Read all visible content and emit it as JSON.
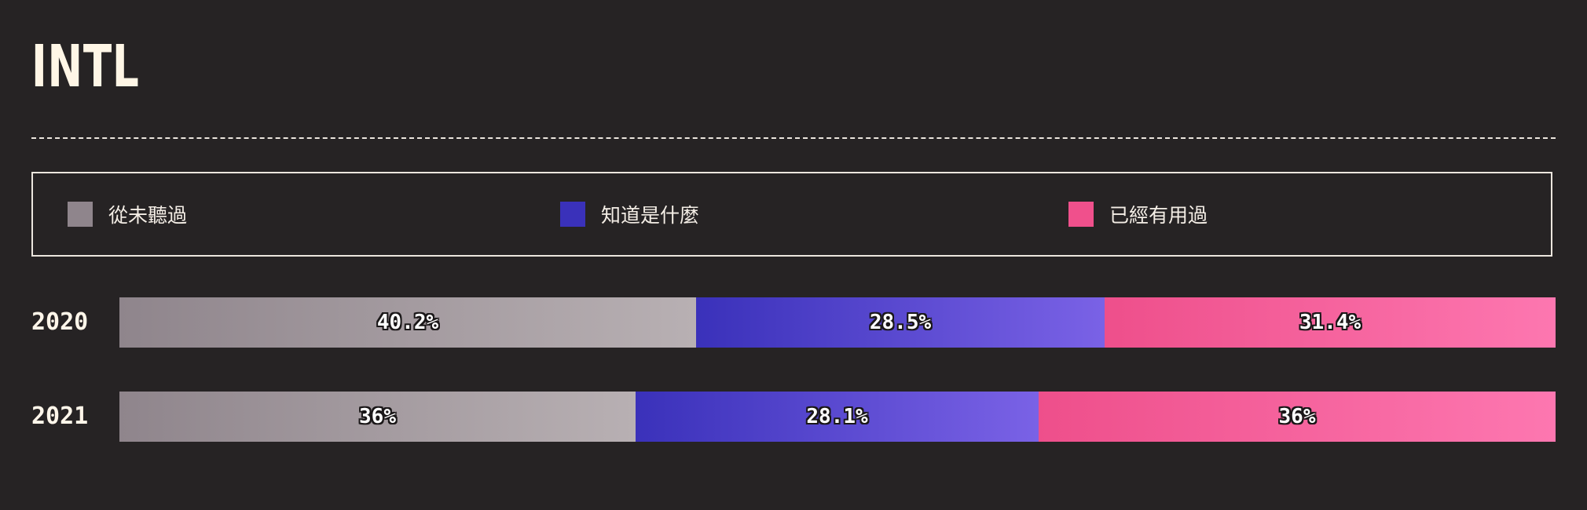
{
  "title": "INTL",
  "legend": [
    {
      "label": "從未聽過",
      "color": "#8f858c"
    },
    {
      "label": "知道是什麼",
      "color": "#3a31ba"
    },
    {
      "label": "已經有用過",
      "color": "#f0508c"
    }
  ],
  "chart_data": {
    "type": "bar",
    "stacked": true,
    "orientation": "horizontal",
    "categories": [
      "2020",
      "2021"
    ],
    "series": [
      {
        "name": "從未聽過",
        "values": [
          40.2,
          36
        ],
        "labels": [
          "40.2%",
          "36%"
        ],
        "gradient": [
          "#8f858c",
          "#b8b0b3"
        ]
      },
      {
        "name": "知道是什麼",
        "values": [
          28.5,
          28.1
        ],
        "labels": [
          "28.5%",
          "28.1%"
        ],
        "gradient": [
          "#3a31ba",
          "#7a62e6"
        ]
      },
      {
        "name": "已經有用過",
        "values": [
          31.4,
          36
        ],
        "labels": [
          "31.4%",
          "36%"
        ],
        "gradient": [
          "#ee4f8b",
          "#fd77b0"
        ]
      }
    ],
    "title": "INTL",
    "xlabel": "",
    "ylabel": "",
    "legend_position": "top"
  }
}
